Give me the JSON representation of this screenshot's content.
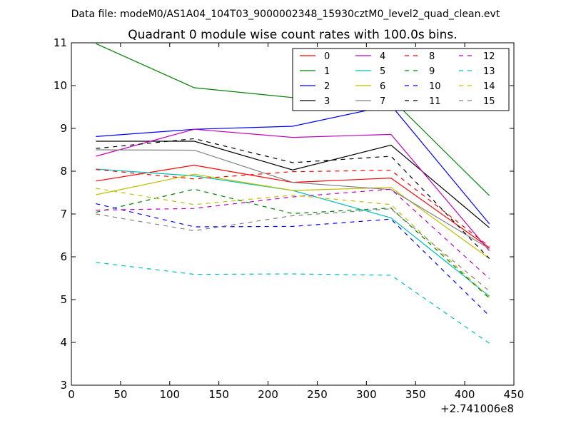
{
  "chart_data": {
    "type": "line",
    "suptitle": "Data file: modeM0/AS1A04_104T03_9000002348_15930cztM0_level2_quad_clean.evt",
    "title": "Quadrant 0 module wise count rates with 100.0s bins.",
    "xlabel": "",
    "ylabel": "",
    "x_offset_label": "+2.741006e8",
    "xlim": [
      0,
      450
    ],
    "ylim": [
      3,
      11
    ],
    "xticks": [
      0,
      50,
      100,
      150,
      200,
      250,
      300,
      350,
      400,
      450
    ],
    "yticks": [
      3,
      4,
      5,
      6,
      7,
      8,
      9,
      10,
      11
    ],
    "x": [
      25,
      125,
      225,
      325,
      425
    ],
    "legend_position": "top-right",
    "series": [
      {
        "name": "0",
        "color": "#ff0000",
        "style": "solid",
        "values": [
          7.77,
          8.14,
          7.74,
          7.84,
          6.21
        ]
      },
      {
        "name": "1",
        "color": "#008000",
        "style": "solid",
        "values": [
          10.98,
          9.95,
          9.72,
          9.7,
          7.43
        ]
      },
      {
        "name": "2",
        "color": "#0000ff",
        "style": "solid",
        "values": [
          8.81,
          8.98,
          9.05,
          9.54,
          6.77
        ]
      },
      {
        "name": "3",
        "color": "#000000",
        "style": "solid",
        "values": [
          8.7,
          8.7,
          8.03,
          8.61,
          6.68
        ]
      },
      {
        "name": "4",
        "color": "#bf00bf",
        "style": "solid",
        "values": [
          8.35,
          8.98,
          8.79,
          8.86,
          6.14
        ]
      },
      {
        "name": "5",
        "color": "#00bfbf",
        "style": "solid",
        "values": [
          8.05,
          7.89,
          7.55,
          6.91,
          5.08
        ]
      },
      {
        "name": "6",
        "color": "#bfbf00",
        "style": "solid",
        "values": [
          7.45,
          7.93,
          7.55,
          7.62,
          5.96
        ]
      },
      {
        "name": "7",
        "color": "#808080",
        "style": "solid",
        "values": [
          8.5,
          8.49,
          7.74,
          7.57,
          6.19
        ]
      },
      {
        "name": "8",
        "color": "#ff0000",
        "style": "dashed",
        "values": [
          8.04,
          7.82,
          7.99,
          8.02,
          6.24
        ]
      },
      {
        "name": "9",
        "color": "#008000",
        "style": "dashed",
        "values": [
          7.04,
          7.58,
          7.01,
          7.14,
          5.03
        ]
      },
      {
        "name": "10",
        "color": "#0000ff",
        "style": "dashed",
        "values": [
          7.24,
          6.7,
          6.71,
          6.88,
          4.62
        ]
      },
      {
        "name": "11",
        "color": "#000000",
        "style": "dashed",
        "values": [
          8.53,
          8.76,
          8.2,
          8.35,
          5.96
        ]
      },
      {
        "name": "12",
        "color": "#bf00bf",
        "style": "dashed",
        "values": [
          7.09,
          7.13,
          7.4,
          7.58,
          5.49
        ]
      },
      {
        "name": "13",
        "color": "#00bfbf",
        "style": "dashed",
        "values": [
          5.87,
          5.59,
          5.6,
          5.57,
          3.98
        ]
      },
      {
        "name": "14",
        "color": "#bfbf00",
        "style": "dashed",
        "values": [
          7.6,
          7.22,
          7.44,
          7.22,
          5.05
        ]
      },
      {
        "name": "15",
        "color": "#808080",
        "style": "dashed",
        "values": [
          7.0,
          6.61,
          6.96,
          7.12,
          5.2
        ]
      }
    ]
  }
}
